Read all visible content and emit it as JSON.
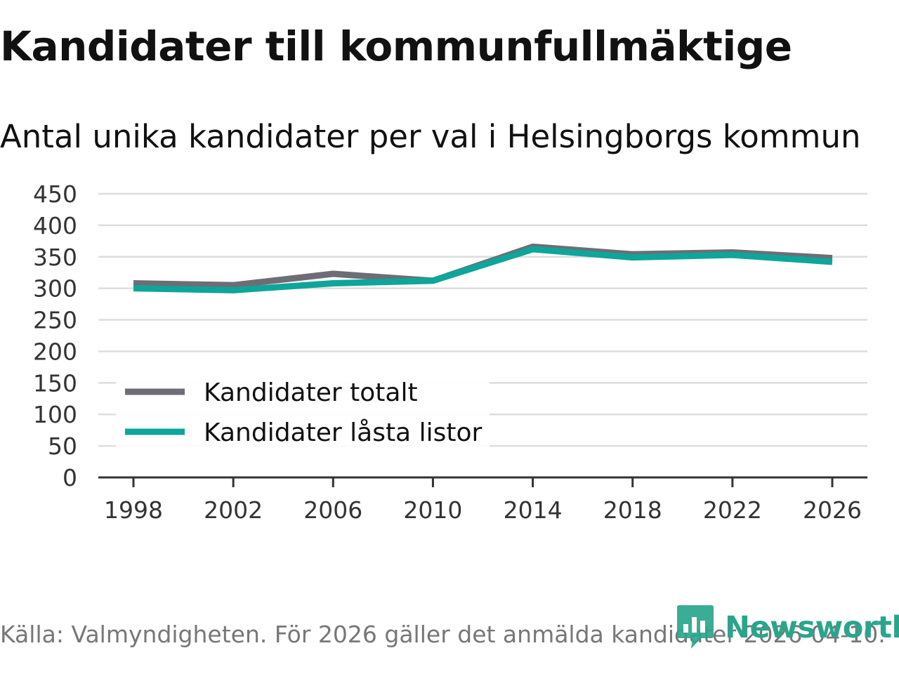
{
  "title": "Kandidater till kommunfullmäktige",
  "subtitle": "Antal unika kandidater per val i Helsingborgs kommun",
  "source": "Källa: Valmyndigheten. För 2026 gäller det anmälda kandidater 2026-04-10.",
  "brand": {
    "name": "Newsworthy",
    "icon": "newsworthy-logo-icon"
  },
  "colors": {
    "totalt": "#6e6d75",
    "lasta": "#0ea59a",
    "grid": "#dddddd",
    "axis": "#333333",
    "brand": "#2aa58c"
  },
  "chart_data": {
    "type": "line",
    "title": "Kandidater till kommunfullmäktige",
    "subtitle": "Antal unika kandidater per val i Helsingborgs kommun",
    "xlabel": "",
    "ylabel": "",
    "x": [
      "1998",
      "2002",
      "2006",
      "2010",
      "2014",
      "2018",
      "2022",
      "2026"
    ],
    "ylim": [
      0,
      450
    ],
    "yticks": [
      0,
      50,
      100,
      150,
      200,
      250,
      300,
      350,
      400,
      450
    ],
    "grid": true,
    "legend_position": "bottom-left",
    "series": [
      {
        "name": "Kandidater totalt",
        "color_key": "totalt",
        "values": [
          308,
          305,
          323,
          312,
          366,
          354,
          357,
          348
        ]
      },
      {
        "name": "Kandidater låsta listor",
        "color_key": "lasta",
        "values": [
          300,
          297,
          308,
          312,
          362,
          349,
          353,
          342
        ]
      }
    ]
  }
}
